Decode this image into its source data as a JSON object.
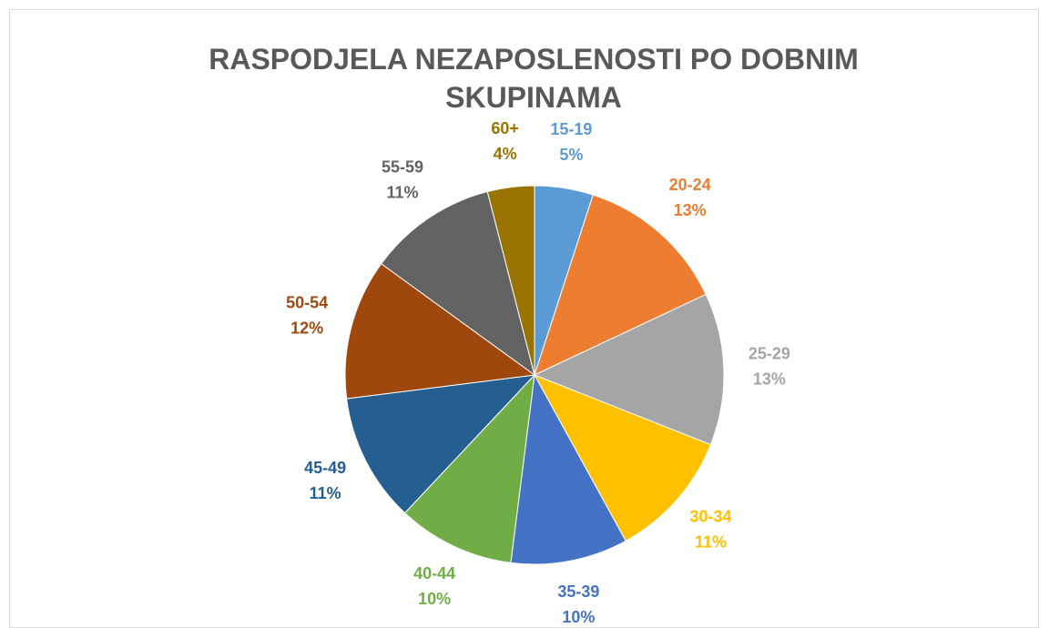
{
  "chart_data": {
    "type": "pie",
    "title": "RASPODJELA NEZAPOSLENOSTI PO DOBNIM SKUPINAMA",
    "categories": [
      "15-19",
      "20-24",
      "25-29",
      "30-34",
      "35-39",
      "40-44",
      "45-49",
      "50-54",
      "55-59",
      "60+"
    ],
    "values": [
      5,
      13,
      13,
      11,
      10,
      10,
      11,
      12,
      11,
      4
    ],
    "value_labels": [
      "5%",
      "13%",
      "13%",
      "11%",
      "10%",
      "10%",
      "11%",
      "12%",
      "11%",
      "4%"
    ],
    "colors": [
      "#5b9bd5",
      "#ed7d31",
      "#a5a5a5",
      "#ffc000",
      "#4472c4",
      "#70ad47",
      "#255e91",
      "#9e480e",
      "#636363",
      "#997300"
    ]
  }
}
